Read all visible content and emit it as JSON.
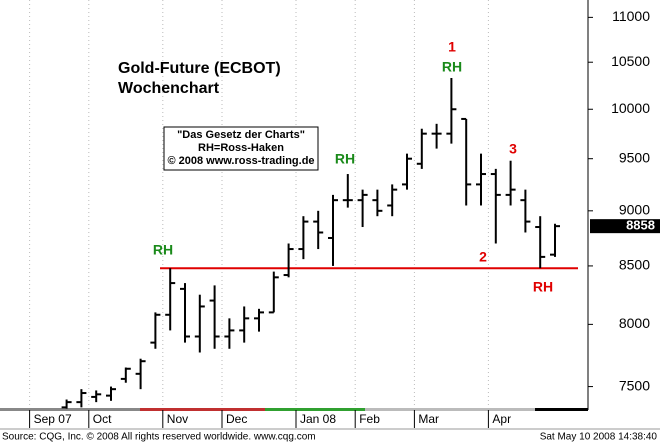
{
  "chart_data": {
    "type": "ohlc",
    "title": "Gold-Future (ECBOT)",
    "subtitle": "Wochenchart",
    "note": [
      "\"Das Gesetz der Charts\"",
      "RH=Ross-Haken",
      "© 2008 www.ross-trading.de"
    ],
    "annotations": [
      "1",
      "RH",
      "RH",
      "RH",
      "3",
      "2",
      "RH"
    ],
    "categories": [
      null,
      null,
      "Sep 07",
      null,
      null,
      null,
      "Oct",
      null,
      null,
      null,
      null,
      "Nov",
      null,
      null,
      null,
      "Dec",
      null,
      null,
      null,
      null,
      "Jan 08",
      null,
      null,
      null,
      "Feb",
      null,
      null,
      null,
      "Mar",
      null,
      null,
      null,
      null,
      "Apr",
      null,
      null,
      null,
      null
    ],
    "open": [
      null,
      null,
      null,
      null,
      7340,
      7380,
      7420,
      7430,
      7560,
      7600,
      7850,
      8080,
      8300,
      7900,
      8200,
      7900,
      7950,
      8050,
      8100,
      8420,
      8650,
      8900,
      8750,
      9100,
      9100,
      9100,
      9050,
      9250,
      9450,
      9750,
      9750,
      9900,
      9250,
      9350,
      9150,
      9100,
      8850,
      8600
    ],
    "high": [
      null,
      null,
      null,
      null,
      7400,
      7480,
      7470,
      7500,
      7650,
      7720,
      8100,
      8480,
      8350,
      8250,
      8330,
      8050,
      8150,
      8130,
      8450,
      8700,
      8950,
      9000,
      9150,
      9350,
      9200,
      9200,
      9250,
      9550,
      9800,
      9850,
      10330,
      9900,
      9550,
      9400,
      9480,
      9200,
      8950,
      8880
    ],
    "low": [
      null,
      null,
      null,
      null,
      7330,
      7340,
      7380,
      7390,
      7530,
      7480,
      7800,
      7950,
      7850,
      7770,
      7800,
      7800,
      7850,
      7940,
      8100,
      8400,
      8560,
      8650,
      8500,
      9030,
      8850,
      8950,
      8950,
      9200,
      9400,
      9600,
      9650,
      9050,
      9050,
      8700,
      9050,
      8800,
      8480,
      8580
    ],
    "close": [
      null,
      null,
      null,
      null,
      7380,
      7450,
      7440,
      7480,
      7640,
      7700,
      8080,
      8350,
      7900,
      8150,
      7900,
      7950,
      8050,
      8100,
      8400,
      8650,
      8900,
      8800,
      9100,
      9100,
      9150,
      9000,
      9200,
      9500,
      9750,
      9750,
      10000,
      9250,
      9350,
      9150,
      9200,
      8900,
      8580,
      8858
    ],
    "color": "#000000",
    "log_scale": true,
    "ylim": [
      7320,
      11200
    ],
    "yticks": [
      7500,
      8000,
      8500,
      9000,
      9500,
      10000,
      10500,
      11000
    ],
    "support_level": 8480,
    "support_color": "#e00000",
    "footer": {
      "source": "Source: CQG, Inc. © 2008 All rights reserved worldwide. www.cqg.com",
      "timestamp": "Sat May 10 2008 14:38:40"
    }
  }
}
